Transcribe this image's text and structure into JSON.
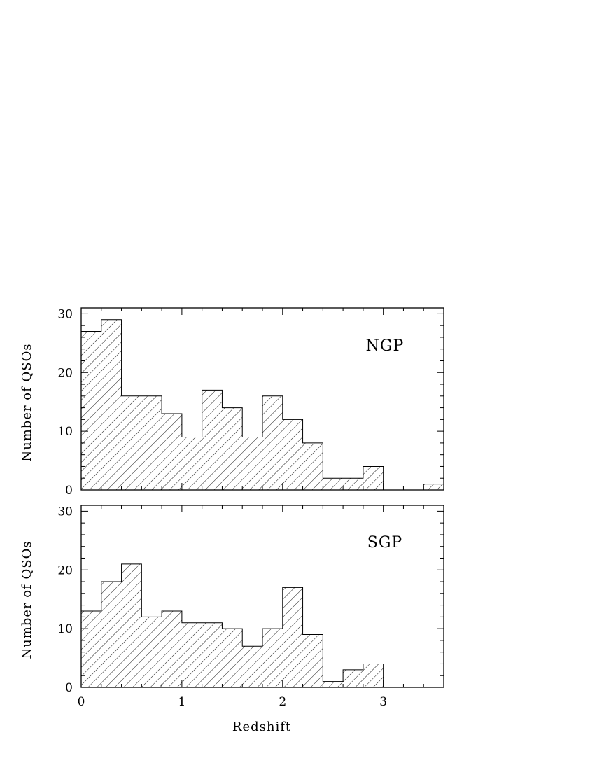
{
  "chart_data": [
    {
      "type": "bar",
      "panel_label": "NGP",
      "ylabel": "Number of QSOs",
      "xlabel": "",
      "bin_width": 0.2,
      "x_bin_starts": [
        0.0,
        0.2,
        0.4,
        0.6,
        0.8,
        1.0,
        1.2,
        1.4,
        1.6,
        1.8,
        2.0,
        2.2,
        2.4,
        2.6,
        2.8,
        3.0,
        3.2,
        3.4
      ],
      "values": [
        27,
        29,
        16,
        16,
        13,
        9,
        17,
        14,
        9,
        16,
        12,
        8,
        2,
        2,
        4,
        0,
        0,
        1
      ],
      "xlim": [
        0,
        3.6
      ],
      "ylim": [
        0,
        31
      ],
      "yticks": [
        0,
        10,
        20,
        30
      ],
      "xticks": [
        0,
        1,
        2,
        3
      ],
      "show_xtick_labels": false,
      "fill": "diagonal-hatch"
    },
    {
      "type": "bar",
      "panel_label": "SGP",
      "ylabel": "Number of QSOs",
      "xlabel": "Redshift",
      "bin_width": 0.2,
      "x_bin_starts": [
        0.0,
        0.2,
        0.4,
        0.6,
        0.8,
        1.0,
        1.2,
        1.4,
        1.6,
        1.8,
        2.0,
        2.2,
        2.4,
        2.6,
        2.8,
        3.0,
        3.2,
        3.4
      ],
      "values": [
        13,
        18,
        21,
        12,
        13,
        11,
        11,
        10,
        7,
        10,
        17,
        9,
        1,
        3,
        4,
        0,
        0,
        0
      ],
      "xlim": [
        0,
        3.6
      ],
      "ylim": [
        0,
        31
      ],
      "yticks": [
        0,
        10,
        20,
        30
      ],
      "xticks": [
        0,
        1,
        2,
        3
      ],
      "show_xtick_labels": true,
      "fill": "diagonal-hatch"
    }
  ]
}
